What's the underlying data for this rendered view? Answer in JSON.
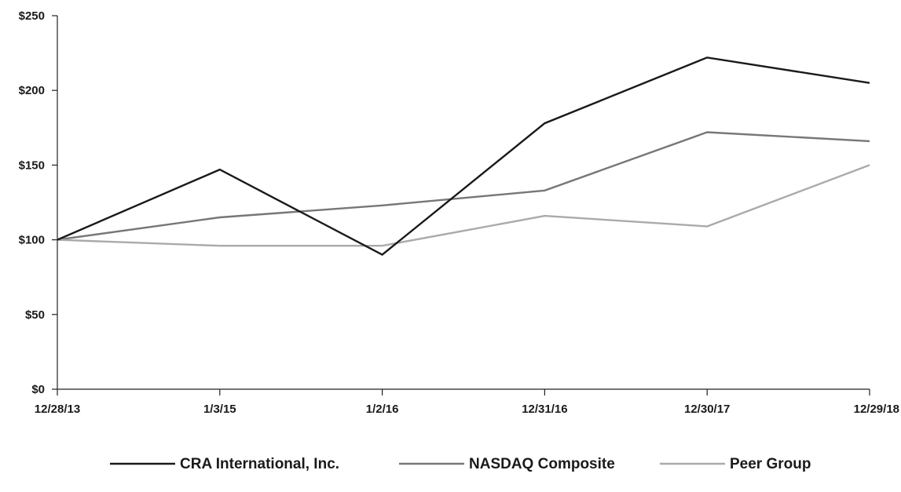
{
  "chart_data": {
    "type": "line",
    "title": "",
    "xlabel": "",
    "ylabel": "",
    "categories": [
      "12/28/13",
      "1/3/15",
      "1/2/16",
      "12/31/16",
      "12/30/17",
      "12/29/18"
    ],
    "y_ticks": [
      "$0",
      "$50",
      "$100",
      "$150",
      "$200",
      "$250"
    ],
    "ylim": [
      0,
      250
    ],
    "grid": false,
    "legend_position": "bottom",
    "series": [
      {
        "name": "CRA International, Inc.",
        "color": "#1a1a1a",
        "values": [
          100,
          147,
          90,
          178,
          222,
          205
        ]
      },
      {
        "name": "NASDAQ Composite",
        "color": "#777777",
        "values": [
          100,
          115,
          123,
          133,
          172,
          166
        ]
      },
      {
        "name": "Peer Group",
        "color": "#aaaaaa",
        "values": [
          100,
          96,
          96,
          116,
          109,
          150
        ]
      }
    ]
  }
}
